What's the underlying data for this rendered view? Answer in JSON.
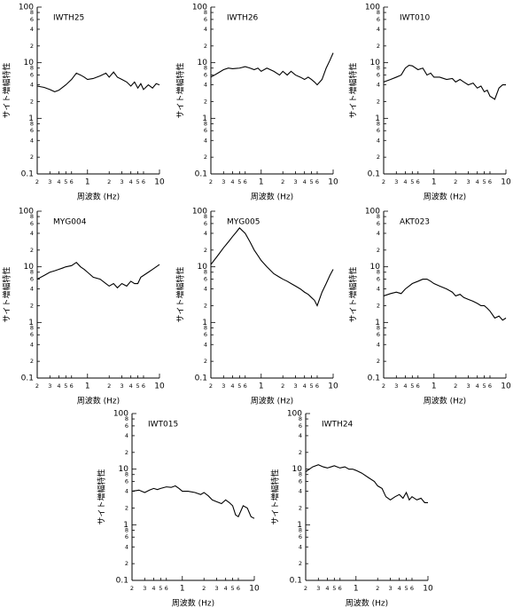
{
  "chart_data": [
    {
      "type": "line",
      "title": "IWTH25",
      "xlabel": "周波数 (Hz)",
      "ylabel": "サイト増幅特性",
      "xscale": "log",
      "yscale": "log",
      "xlim": [
        0.2,
        10
      ],
      "ylim": [
        0.1,
        100
      ],
      "xticks": [
        {
          "value": 0.2,
          "label": "2"
        },
        {
          "value": 0.3,
          "label": "3"
        },
        {
          "value": 0.4,
          "label": "4"
        },
        {
          "value": 0.5,
          "label": "5"
        },
        {
          "value": 0.6,
          "label": "6"
        },
        1,
        2,
        3,
        4,
        5,
        6,
        10
      ],
      "yticks": [
        0.1,
        {
          "value": 0.2,
          "label": "2"
        },
        {
          "value": 0.4,
          "label": "4"
        },
        {
          "value": 0.6,
          "label": "6"
        },
        {
          "value": 0.8,
          "label": "8"
        },
        1,
        2,
        4,
        6,
        8,
        10,
        {
          "value": 20,
          "label": "2"
        },
        {
          "value": 40,
          "label": "4"
        },
        {
          "value": 60,
          "label": "6"
        },
        {
          "value": 80,
          "label": "8"
        },
        100
      ],
      "x": [
        0.2,
        0.25,
        0.3,
        0.35,
        0.4,
        0.45,
        0.5,
        0.6,
        0.7,
        0.8,
        0.9,
        1,
        1.2,
        1.5,
        1.8,
        2,
        2.3,
        2.6,
        3,
        3.5,
        4,
        4.5,
        5,
        5.5,
        6,
        7,
        8,
        9,
        10
      ],
      "series": [
        {
          "color": "#000000",
          "values": [
            3.8,
            3.6,
            3.3,
            3.0,
            3.2,
            3.6,
            4,
            5,
            6.5,
            6,
            5.5,
            5,
            5.2,
            5.8,
            6.5,
            5.5,
            6.8,
            5.5,
            5,
            4.5,
            3.8,
            4.5,
            3.5,
            4.2,
            3.3,
            4,
            3.5,
            4.2,
            4
          ]
        }
      ]
    },
    {
      "type": "line",
      "title": "IWTH26",
      "xlabel": "周波数 (Hz)",
      "ylabel": "サイト増幅特性",
      "xscale": "log",
      "yscale": "log",
      "xlim": [
        0.2,
        10
      ],
      "ylim": [
        0.1,
        100
      ],
      "xticks": [
        {
          "value": 0.2,
          "label": "2"
        },
        {
          "value": 0.3,
          "label": "3"
        },
        {
          "value": 0.4,
          "label": "4"
        },
        {
          "value": 0.5,
          "label": "5"
        },
        {
          "value": 0.6,
          "label": "6"
        },
        1,
        2,
        3,
        4,
        5,
        6,
        10
      ],
      "yticks": [
        0.1,
        {
          "value": 0.2,
          "label": "2"
        },
        {
          "value": 0.4,
          "label": "4"
        },
        {
          "value": 0.6,
          "label": "6"
        },
        {
          "value": 0.8,
          "label": "8"
        },
        1,
        2,
        4,
        6,
        8,
        10,
        {
          "value": 20,
          "label": "2"
        },
        {
          "value": 40,
          "label": "4"
        },
        {
          "value": 60,
          "label": "6"
        },
        {
          "value": 80,
          "label": "8"
        },
        100
      ],
      "x": [
        0.2,
        0.25,
        0.3,
        0.35,
        0.4,
        0.45,
        0.5,
        0.6,
        0.7,
        0.8,
        0.9,
        1,
        1.2,
        1.5,
        1.8,
        2,
        2.3,
        2.6,
        3,
        3.5,
        4,
        4.5,
        5,
        5.5,
        6,
        7,
        8,
        9,
        10
      ],
      "series": [
        {
          "color": "#000000",
          "values": [
            5.5,
            6.5,
            7.5,
            8,
            7.8,
            7.9,
            8,
            8.5,
            8,
            7.5,
            8,
            7,
            8,
            7,
            6,
            7,
            6,
            7,
            6,
            5.5,
            5,
            5.5,
            5,
            4.5,
            4,
            5,
            8,
            11,
            15
          ]
        }
      ]
    },
    {
      "type": "line",
      "title": "IWT010",
      "xlabel": "周波数 (Hz)",
      "ylabel": "サイト増幅特性",
      "xscale": "log",
      "yscale": "log",
      "xlim": [
        0.2,
        10
      ],
      "ylim": [
        0.1,
        100
      ],
      "xticks": [
        {
          "value": 0.2,
          "label": "2"
        },
        {
          "value": 0.3,
          "label": "3"
        },
        {
          "value": 0.4,
          "label": "4"
        },
        {
          "value": 0.5,
          "label": "5"
        },
        {
          "value": 0.6,
          "label": "6"
        },
        1,
        2,
        3,
        4,
        5,
        6,
        10
      ],
      "yticks": [
        0.1,
        {
          "value": 0.2,
          "label": "2"
        },
        {
          "value": 0.4,
          "label": "4"
        },
        {
          "value": 0.6,
          "label": "6"
        },
        {
          "value": 0.8,
          "label": "8"
        },
        1,
        2,
        4,
        6,
        8,
        10,
        {
          "value": 20,
          "label": "2"
        },
        {
          "value": 40,
          "label": "4"
        },
        {
          "value": 60,
          "label": "6"
        },
        {
          "value": 80,
          "label": "8"
        },
        100
      ],
      "x": [
        0.2,
        0.25,
        0.3,
        0.35,
        0.4,
        0.45,
        0.5,
        0.6,
        0.7,
        0.8,
        0.9,
        1,
        1.2,
        1.5,
        1.8,
        2,
        2.3,
        2.6,
        3,
        3.5,
        4,
        4.5,
        5,
        5.5,
        6,
        7,
        8,
        9,
        10
      ],
      "series": [
        {
          "color": "#000000",
          "values": [
            4.5,
            5,
            5.5,
            6,
            8,
            9,
            8.8,
            7.5,
            8,
            6,
            6.5,
            5.5,
            5.5,
            5,
            5.2,
            4.5,
            5,
            4.5,
            4,
            4.3,
            3.5,
            3.8,
            3,
            3.2,
            2.5,
            2.2,
            3.5,
            4,
            4
          ]
        }
      ]
    },
    {
      "type": "line",
      "title": "MYG004",
      "xlabel": "周波数 (Hz)",
      "ylabel": "サイト増幅特性",
      "xscale": "log",
      "yscale": "log",
      "xlim": [
        0.2,
        10
      ],
      "ylim": [
        0.1,
        100
      ],
      "xticks": [
        {
          "value": 0.2,
          "label": "2"
        },
        {
          "value": 0.3,
          "label": "3"
        },
        {
          "value": 0.4,
          "label": "4"
        },
        {
          "value": 0.5,
          "label": "5"
        },
        {
          "value": 0.6,
          "label": "6"
        },
        1,
        2,
        3,
        4,
        5,
        6,
        10
      ],
      "yticks": [
        0.1,
        {
          "value": 0.2,
          "label": "2"
        },
        {
          "value": 0.4,
          "label": "4"
        },
        {
          "value": 0.6,
          "label": "6"
        },
        {
          "value": 0.8,
          "label": "8"
        },
        1,
        2,
        4,
        6,
        8,
        10,
        {
          "value": 20,
          "label": "2"
        },
        {
          "value": 40,
          "label": "4"
        },
        {
          "value": 60,
          "label": "6"
        },
        {
          "value": 80,
          "label": "8"
        },
        100
      ],
      "x": [
        0.2,
        0.25,
        0.3,
        0.35,
        0.4,
        0.45,
        0.5,
        0.6,
        0.7,
        0.8,
        0.9,
        1,
        1.2,
        1.5,
        1.8,
        2,
        2.3,
        2.6,
        3,
        3.5,
        4,
        4.5,
        5,
        5.5,
        6,
        7,
        8,
        9,
        10
      ],
      "series": [
        {
          "color": "#000000",
          "values": [
            6,
            7,
            8,
            8.5,
            9,
            9.5,
            10,
            10.5,
            12,
            10,
            9,
            8,
            6.5,
            6,
            5,
            4.5,
            5,
            4.2,
            5,
            4.5,
            5.5,
            5,
            5,
            6.5,
            7,
            8,
            9,
            10,
            11
          ]
        }
      ]
    },
    {
      "type": "line",
      "title": "MYG005",
      "xlabel": "周波数 (Hz)",
      "ylabel": "サイト増幅特性",
      "xscale": "log",
      "yscale": "log",
      "xlim": [
        0.2,
        10
      ],
      "ylim": [
        0.1,
        100
      ],
      "xticks": [
        {
          "value": 0.2,
          "label": "2"
        },
        {
          "value": 0.3,
          "label": "3"
        },
        {
          "value": 0.4,
          "label": "4"
        },
        {
          "value": 0.5,
          "label": "5"
        },
        {
          "value": 0.6,
          "label": "6"
        },
        1,
        2,
        3,
        4,
        5,
        6,
        10
      ],
      "yticks": [
        0.1,
        {
          "value": 0.2,
          "label": "2"
        },
        {
          "value": 0.4,
          "label": "4"
        },
        {
          "value": 0.6,
          "label": "6"
        },
        {
          "value": 0.8,
          "label": "8"
        },
        1,
        2,
        4,
        6,
        8,
        10,
        {
          "value": 20,
          "label": "2"
        },
        {
          "value": 40,
          "label": "4"
        },
        {
          "value": 60,
          "label": "6"
        },
        {
          "value": 80,
          "label": "8"
        },
        100
      ],
      "x": [
        0.2,
        0.25,
        0.3,
        0.35,
        0.4,
        0.45,
        0.5,
        0.6,
        0.7,
        0.8,
        0.9,
        1,
        1.2,
        1.5,
        1.8,
        2,
        2.3,
        2.6,
        3,
        3.5,
        4,
        4.5,
        5,
        5.5,
        6,
        7,
        8,
        9,
        10
      ],
      "series": [
        {
          "color": "#000000",
          "values": [
            11,
            16,
            22,
            28,
            35,
            42,
            50,
            40,
            28,
            20,
            16,
            13,
            10,
            7.5,
            6.5,
            6,
            5.5,
            5,
            4.5,
            4,
            3.5,
            3.2,
            2.8,
            2.5,
            2,
            3.5,
            5,
            7,
            9
          ]
        }
      ]
    },
    {
      "type": "line",
      "title": "AKT023",
      "xlabel": "周波数 (Hz)",
      "ylabel": "サイト増幅特性",
      "xscale": "log",
      "yscale": "log",
      "xlim": [
        0.2,
        10
      ],
      "ylim": [
        0.1,
        100
      ],
      "xticks": [
        {
          "value": 0.2,
          "label": "2"
        },
        {
          "value": 0.3,
          "label": "3"
        },
        {
          "value": 0.4,
          "label": "4"
        },
        {
          "value": 0.5,
          "label": "5"
        },
        {
          "value": 0.6,
          "label": "6"
        },
        1,
        2,
        3,
        4,
        5,
        6,
        10
      ],
      "yticks": [
        0.1,
        {
          "value": 0.2,
          "label": "2"
        },
        {
          "value": 0.4,
          "label": "4"
        },
        {
          "value": 0.6,
          "label": "6"
        },
        {
          "value": 0.8,
          "label": "8"
        },
        1,
        2,
        4,
        6,
        8,
        10,
        {
          "value": 20,
          "label": "2"
        },
        {
          "value": 40,
          "label": "4"
        },
        {
          "value": 60,
          "label": "6"
        },
        {
          "value": 80,
          "label": "8"
        },
        100
      ],
      "x": [
        0.2,
        0.25,
        0.3,
        0.35,
        0.4,
        0.45,
        0.5,
        0.6,
        0.7,
        0.8,
        0.9,
        1,
        1.2,
        1.5,
        1.8,
        2,
        2.3,
        2.6,
        3,
        3.5,
        4,
        4.5,
        5,
        5.5,
        6,
        7,
        8,
        9,
        10
      ],
      "series": [
        {
          "color": "#000000",
          "values": [
            3,
            3.3,
            3.5,
            3.3,
            4,
            4.5,
            5,
            5.5,
            6,
            6,
            5.5,
            5,
            4.5,
            4,
            3.5,
            3,
            3.2,
            2.8,
            2.6,
            2.4,
            2.2,
            2,
            2,
            1.8,
            1.6,
            1.2,
            1.3,
            1.1,
            1.2
          ]
        }
      ]
    },
    {
      "type": "line",
      "title": "IWT015",
      "xlabel": "周波数 (Hz)",
      "ylabel": "サイト増幅特性",
      "xscale": "log",
      "yscale": "log",
      "xlim": [
        0.2,
        10
      ],
      "ylim": [
        0.1,
        100
      ],
      "xticks": [
        {
          "value": 0.2,
          "label": "2"
        },
        {
          "value": 0.3,
          "label": "3"
        },
        {
          "value": 0.4,
          "label": "4"
        },
        {
          "value": 0.5,
          "label": "5"
        },
        {
          "value": 0.6,
          "label": "6"
        },
        1,
        2,
        3,
        4,
        5,
        6,
        10
      ],
      "yticks": [
        0.1,
        {
          "value": 0.2,
          "label": "2"
        },
        {
          "value": 0.4,
          "label": "4"
        },
        {
          "value": 0.6,
          "label": "6"
        },
        {
          "value": 0.8,
          "label": "8"
        },
        1,
        2,
        4,
        6,
        8,
        10,
        {
          "value": 20,
          "label": "2"
        },
        {
          "value": 40,
          "label": "4"
        },
        {
          "value": 60,
          "label": "6"
        },
        {
          "value": 80,
          "label": "8"
        },
        100
      ],
      "x": [
        0.2,
        0.25,
        0.3,
        0.35,
        0.4,
        0.45,
        0.5,
        0.6,
        0.7,
        0.8,
        0.9,
        1,
        1.2,
        1.5,
        1.8,
        2,
        2.3,
        2.6,
        3,
        3.5,
        4,
        4.5,
        5,
        5.5,
        6,
        7,
        8,
        9,
        10
      ],
      "series": [
        {
          "color": "#000000",
          "values": [
            4,
            4.2,
            3.8,
            4.2,
            4.5,
            4.3,
            4.5,
            4.8,
            4.7,
            5,
            4.5,
            4,
            4,
            3.8,
            3.5,
            3.8,
            3.3,
            2.8,
            2.6,
            2.4,
            2.8,
            2.5,
            2.2,
            1.5,
            1.4,
            2.2,
            2,
            1.4,
            1.3
          ]
        }
      ]
    },
    {
      "type": "line",
      "title": "IWTH24",
      "xlabel": "周波数 (Hz)",
      "ylabel": "サイト増幅特性",
      "xscale": "log",
      "yscale": "log",
      "xlim": [
        0.2,
        10
      ],
      "ylim": [
        0.1,
        100
      ],
      "xticks": [
        {
          "value": 0.2,
          "label": "2"
        },
        {
          "value": 0.3,
          "label": "3"
        },
        {
          "value": 0.4,
          "label": "4"
        },
        {
          "value": 0.5,
          "label": "5"
        },
        {
          "value": 0.6,
          "label": "6"
        },
        1,
        2,
        3,
        4,
        5,
        6,
        10
      ],
      "yticks": [
        0.1,
        {
          "value": 0.2,
          "label": "2"
        },
        {
          "value": 0.4,
          "label": "4"
        },
        {
          "value": 0.6,
          "label": "6"
        },
        {
          "value": 0.8,
          "label": "8"
        },
        1,
        2,
        4,
        6,
        8,
        10,
        {
          "value": 20,
          "label": "2"
        },
        {
          "value": 40,
          "label": "4"
        },
        {
          "value": 60,
          "label": "6"
        },
        {
          "value": 80,
          "label": "8"
        },
        100
      ],
      "x": [
        0.2,
        0.25,
        0.3,
        0.35,
        0.4,
        0.45,
        0.5,
        0.6,
        0.7,
        0.8,
        0.9,
        1,
        1.2,
        1.5,
        1.8,
        2,
        2.3,
        2.6,
        3,
        3.5,
        4,
        4.5,
        5,
        5.5,
        6,
        7,
        8,
        9,
        10
      ],
      "series": [
        {
          "color": "#000000",
          "values": [
            9,
            11,
            12,
            11,
            10.5,
            11,
            11.5,
            10.5,
            11,
            10,
            10,
            9.5,
            8.5,
            7,
            6,
            5,
            4.5,
            3.2,
            2.8,
            3.2,
            3.5,
            3,
            3.8,
            2.8,
            3.2,
            2.8,
            3,
            2.5,
            2.5
          ]
        }
      ]
    }
  ]
}
